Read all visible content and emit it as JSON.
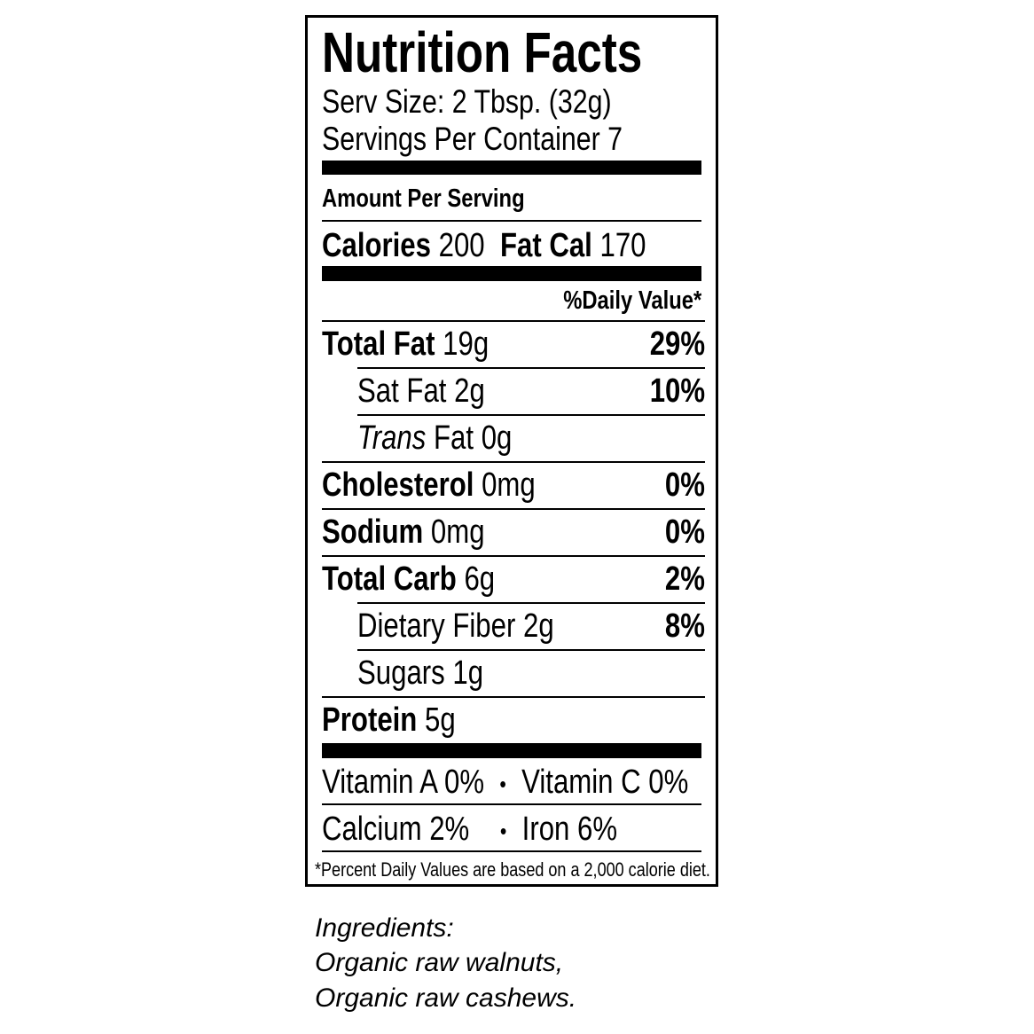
{
  "label": {
    "title": "Nutrition Facts",
    "serving_size": "Serv Size: 2 Tbsp. (32g)",
    "servings_per_container": "Servings Per Container 7",
    "amount_per_serving": "Amount Per Serving",
    "calories_label": "Calories",
    "calories_value": "200",
    "fat_cal_label": "Fat Cal",
    "fat_cal_value": "170",
    "daily_value_header": "%Daily Value*",
    "nutrients": [
      {
        "name": "Total Fat",
        "amount": "19g",
        "dv": "29%"
      },
      {
        "name": "Sat Fat",
        "amount": "2g",
        "dv": "10%"
      },
      {
        "name_italic": "Trans",
        "name": "Fat",
        "amount": "0g",
        "dv": ""
      },
      {
        "name": "Cholesterol",
        "amount": "0mg",
        "dv": "0%"
      },
      {
        "name": "Sodium",
        "amount": "0mg",
        "dv": "0%"
      },
      {
        "name": "Total Carb",
        "amount": "6g",
        "dv": "2%"
      },
      {
        "name": "Dietary Fiber",
        "amount": "2g",
        "dv": "8%"
      },
      {
        "name": "Sugars",
        "amount": "1g",
        "dv": ""
      },
      {
        "name": "Protein",
        "amount": "5g",
        "dv": ""
      }
    ],
    "vitamins": [
      {
        "left": "Vitamin A 0%",
        "right": "Vitamin C 0%"
      },
      {
        "left": "Calcium 2%",
        "right": "Iron 6%"
      }
    ],
    "bullet": "•",
    "footnote": "*Percent Daily Values are based on a 2,000 calorie diet."
  },
  "ingredients": {
    "heading": "Ingredients:",
    "items": [
      "Organic raw walnuts,",
      "Organic raw cashews."
    ]
  }
}
